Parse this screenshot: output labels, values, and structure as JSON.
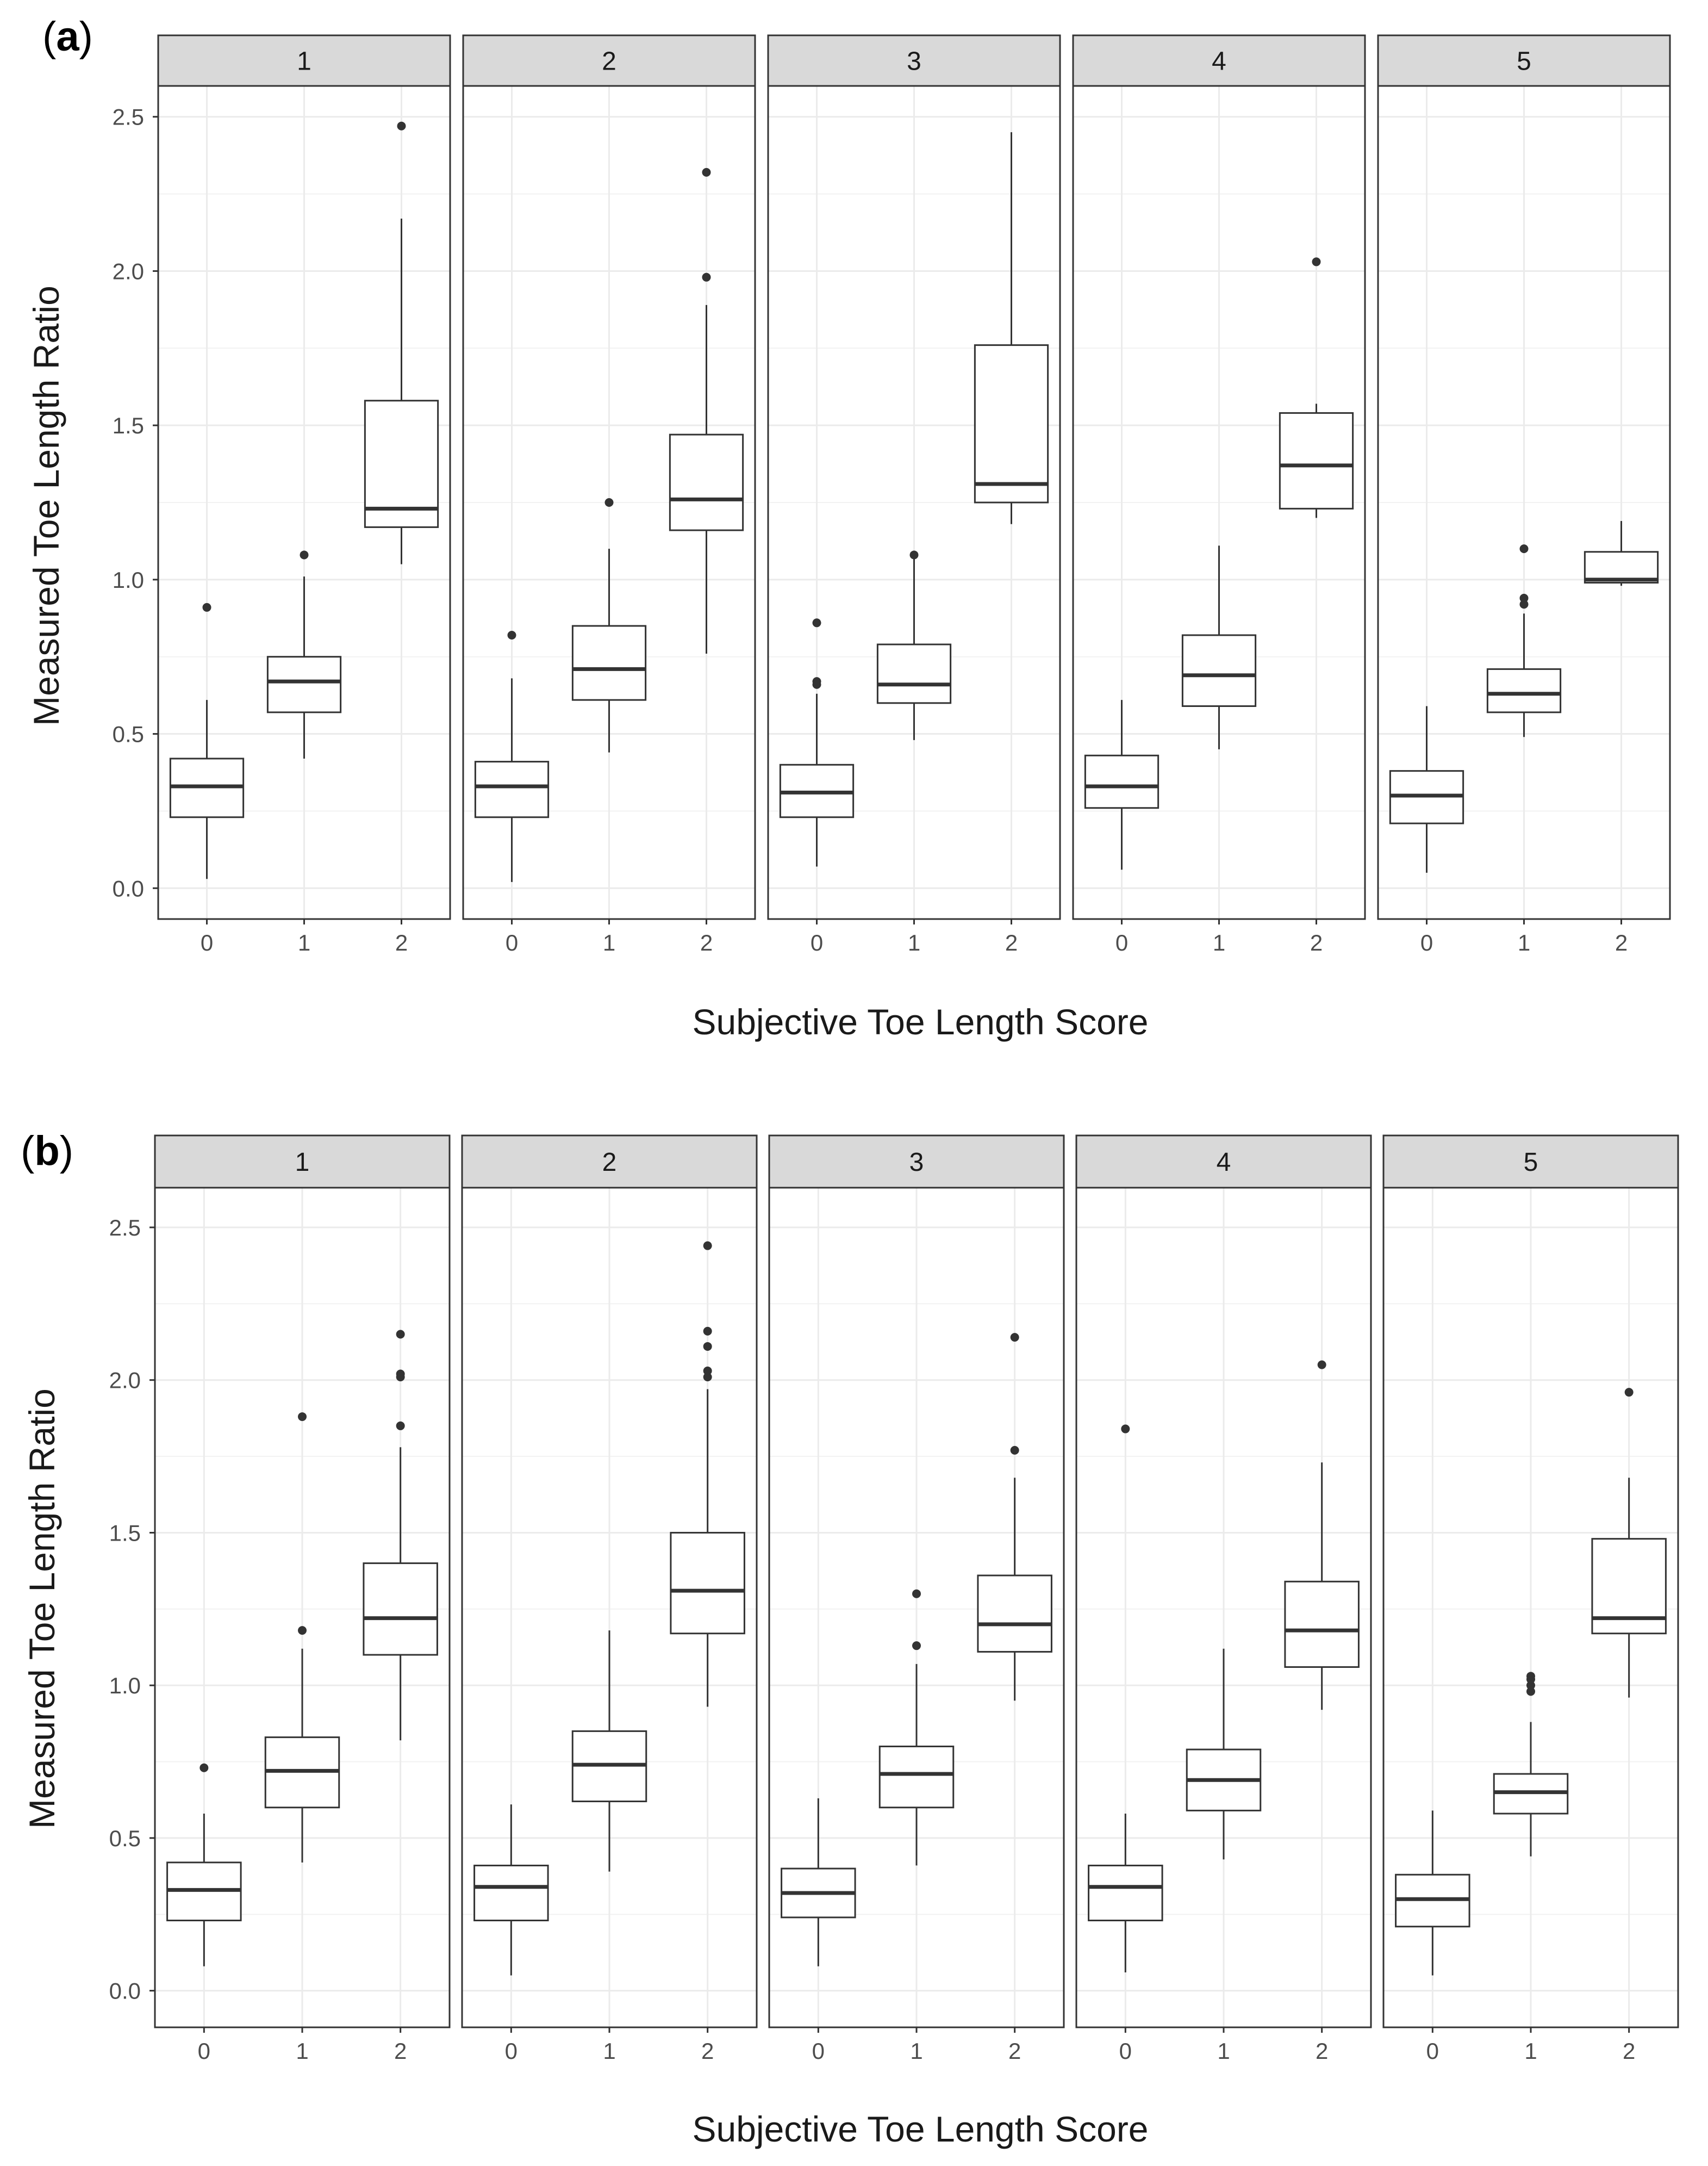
{
  "chart_data": [
    {
      "type": "box",
      "panel_label": "(a)",
      "panel_label_prefix": "(",
      "panel_label_letter": "a",
      "panel_label_suffix": ")",
      "xlabel": "Subjective Toe Length Score",
      "ylabel": "Measured Toe Length Ratio",
      "ylim": [
        -0.1,
        2.6
      ],
      "yticks": [
        "0.0",
        "0.5",
        "1.0",
        "1.5",
        "2.0",
        "2.5"
      ],
      "ytick_values": [
        0,
        0.5,
        1.0,
        1.5,
        2.0,
        2.5
      ],
      "categories": [
        "0",
        "1",
        "2"
      ],
      "facets": [
        {
          "label": "1",
          "boxes": [
            {
              "category": "0",
              "whisker_low": 0.03,
              "q1": 0.23,
              "median": 0.33,
              "q3": 0.42,
              "whisker_high": 0.61,
              "outliers": [
                0.91
              ]
            },
            {
              "category": "1",
              "whisker_low": 0.42,
              "q1": 0.57,
              "median": 0.67,
              "q3": 0.75,
              "whisker_high": 1.01,
              "outliers": [
                1.08
              ]
            },
            {
              "category": "2",
              "whisker_low": 1.05,
              "q1": 1.17,
              "median": 1.23,
              "q3": 1.58,
              "whisker_high": 2.17,
              "outliers": [
                2.47
              ]
            }
          ]
        },
        {
          "label": "2",
          "boxes": [
            {
              "category": "0",
              "whisker_low": 0.02,
              "q1": 0.23,
              "median": 0.33,
              "q3": 0.41,
              "whisker_high": 0.68,
              "outliers": [
                0.82
              ]
            },
            {
              "category": "1",
              "whisker_low": 0.44,
              "q1": 0.61,
              "median": 0.71,
              "q3": 0.85,
              "whisker_high": 1.1,
              "outliers": [
                1.25
              ]
            },
            {
              "category": "2",
              "whisker_low": 0.76,
              "q1": 1.16,
              "median": 1.26,
              "q3": 1.47,
              "whisker_high": 1.89,
              "outliers": [
                1.98,
                2.32
              ]
            }
          ]
        },
        {
          "label": "3",
          "boxes": [
            {
              "category": "0",
              "whisker_low": 0.07,
              "q1": 0.23,
              "median": 0.31,
              "q3": 0.4,
              "whisker_high": 0.63,
              "outliers": [
                0.66,
                0.67,
                0.86
              ]
            },
            {
              "category": "1",
              "whisker_low": 0.48,
              "q1": 0.6,
              "median": 0.66,
              "q3": 0.79,
              "whisker_high": 1.07,
              "outliers": [
                1.08
              ]
            },
            {
              "category": "2",
              "whisker_low": 1.18,
              "q1": 1.25,
              "median": 1.31,
              "q3": 1.76,
              "whisker_high": 2.45,
              "outliers": []
            }
          ]
        },
        {
          "label": "4",
          "boxes": [
            {
              "category": "0",
              "whisker_low": 0.06,
              "q1": 0.26,
              "median": 0.33,
              "q3": 0.43,
              "whisker_high": 0.61,
              "outliers": []
            },
            {
              "category": "1",
              "whisker_low": 0.45,
              "q1": 0.59,
              "median": 0.69,
              "q3": 0.82,
              "whisker_high": 1.11,
              "outliers": []
            },
            {
              "category": "2",
              "whisker_low": 1.2,
              "q1": 1.23,
              "median": 1.37,
              "q3": 1.54,
              "whisker_high": 1.57,
              "outliers": [
                2.03
              ]
            }
          ]
        },
        {
          "label": "5",
          "boxes": [
            {
              "category": "0",
              "whisker_low": 0.05,
              "q1": 0.21,
              "median": 0.3,
              "q3": 0.38,
              "whisker_high": 0.59,
              "outliers": []
            },
            {
              "category": "1",
              "whisker_low": 0.49,
              "q1": 0.57,
              "median": 0.63,
              "q3": 0.71,
              "whisker_high": 0.89,
              "outliers": [
                0.92,
                0.94,
                1.1
              ]
            },
            {
              "category": "2",
              "whisker_low": 0.98,
              "q1": 0.99,
              "median": 1.0,
              "q3": 1.09,
              "whisker_high": 1.19,
              "outliers": []
            }
          ]
        }
      ]
    },
    {
      "type": "box",
      "panel_label": "(b)",
      "panel_label_prefix": "(",
      "panel_label_letter": "b",
      "panel_label_suffix": ")",
      "xlabel": "Subjective Toe Length Score",
      "ylabel": "Measured Toe Length Ratio",
      "ylim": [
        -0.12,
        2.63
      ],
      "yticks": [
        "0.0",
        "0.5",
        "1.0",
        "1.5",
        "2.0",
        "2.5"
      ],
      "ytick_values": [
        0,
        0.5,
        1.0,
        1.5,
        2.0,
        2.5
      ],
      "categories": [
        "0",
        "1",
        "2"
      ],
      "facets": [
        {
          "label": "1",
          "boxes": [
            {
              "category": "0",
              "whisker_low": 0.08,
              "q1": 0.23,
              "median": 0.33,
              "q3": 0.42,
              "whisker_high": 0.58,
              "outliers": [
                0.73
              ]
            },
            {
              "category": "1",
              "whisker_low": 0.42,
              "q1": 0.6,
              "median": 0.72,
              "q3": 0.83,
              "whisker_high": 1.12,
              "outliers": [
                1.18,
                1.88
              ]
            },
            {
              "category": "2",
              "whisker_low": 0.82,
              "q1": 1.1,
              "median": 1.22,
              "q3": 1.4,
              "whisker_high": 1.78,
              "outliers": [
                1.85,
                2.01,
                2.02,
                2.15
              ]
            }
          ]
        },
        {
          "label": "2",
          "boxes": [
            {
              "category": "0",
              "whisker_low": 0.05,
              "q1": 0.23,
              "median": 0.34,
              "q3": 0.41,
              "whisker_high": 0.61,
              "outliers": []
            },
            {
              "category": "1",
              "whisker_low": 0.39,
              "q1": 0.62,
              "median": 0.74,
              "q3": 0.85,
              "whisker_high": 1.18,
              "outliers": []
            },
            {
              "category": "2",
              "whisker_low": 0.93,
              "q1": 1.17,
              "median": 1.31,
              "q3": 1.5,
              "whisker_high": 1.97,
              "outliers": [
                2.01,
                2.03,
                2.11,
                2.16,
                2.44
              ]
            }
          ]
        },
        {
          "label": "3",
          "boxes": [
            {
              "category": "0",
              "whisker_low": 0.08,
              "q1": 0.24,
              "median": 0.32,
              "q3": 0.4,
              "whisker_high": 0.63,
              "outliers": []
            },
            {
              "category": "1",
              "whisker_low": 0.41,
              "q1": 0.6,
              "median": 0.71,
              "q3": 0.8,
              "whisker_high": 1.07,
              "outliers": [
                1.13,
                1.3
              ]
            },
            {
              "category": "2",
              "whisker_low": 0.95,
              "q1": 1.11,
              "median": 1.2,
              "q3": 1.36,
              "whisker_high": 1.68,
              "outliers": [
                1.77,
                2.14
              ]
            }
          ]
        },
        {
          "label": "4",
          "boxes": [
            {
              "category": "0",
              "whisker_low": 0.06,
              "q1": 0.23,
              "median": 0.34,
              "q3": 0.41,
              "whisker_high": 0.58,
              "outliers": [
                1.84
              ]
            },
            {
              "category": "1",
              "whisker_low": 0.43,
              "q1": 0.59,
              "median": 0.69,
              "q3": 0.79,
              "whisker_high": 1.12,
              "outliers": []
            },
            {
              "category": "2",
              "whisker_low": 0.92,
              "q1": 1.06,
              "median": 1.18,
              "q3": 1.34,
              "whisker_high": 1.73,
              "outliers": [
                2.05
              ]
            }
          ]
        },
        {
          "label": "5",
          "boxes": [
            {
              "category": "0",
              "whisker_low": 0.05,
              "q1": 0.21,
              "median": 0.3,
              "q3": 0.38,
              "whisker_high": 0.59,
              "outliers": []
            },
            {
              "category": "1",
              "whisker_low": 0.44,
              "q1": 0.58,
              "median": 0.65,
              "q3": 0.71,
              "whisker_high": 0.88,
              "outliers": [
                0.98,
                1.0,
                1.02,
                1.03
              ]
            },
            {
              "category": "2",
              "whisker_low": 0.96,
              "q1": 1.17,
              "median": 1.22,
              "q3": 1.48,
              "whisker_high": 1.68,
              "outliers": [
                1.96
              ]
            }
          ]
        }
      ]
    }
  ]
}
